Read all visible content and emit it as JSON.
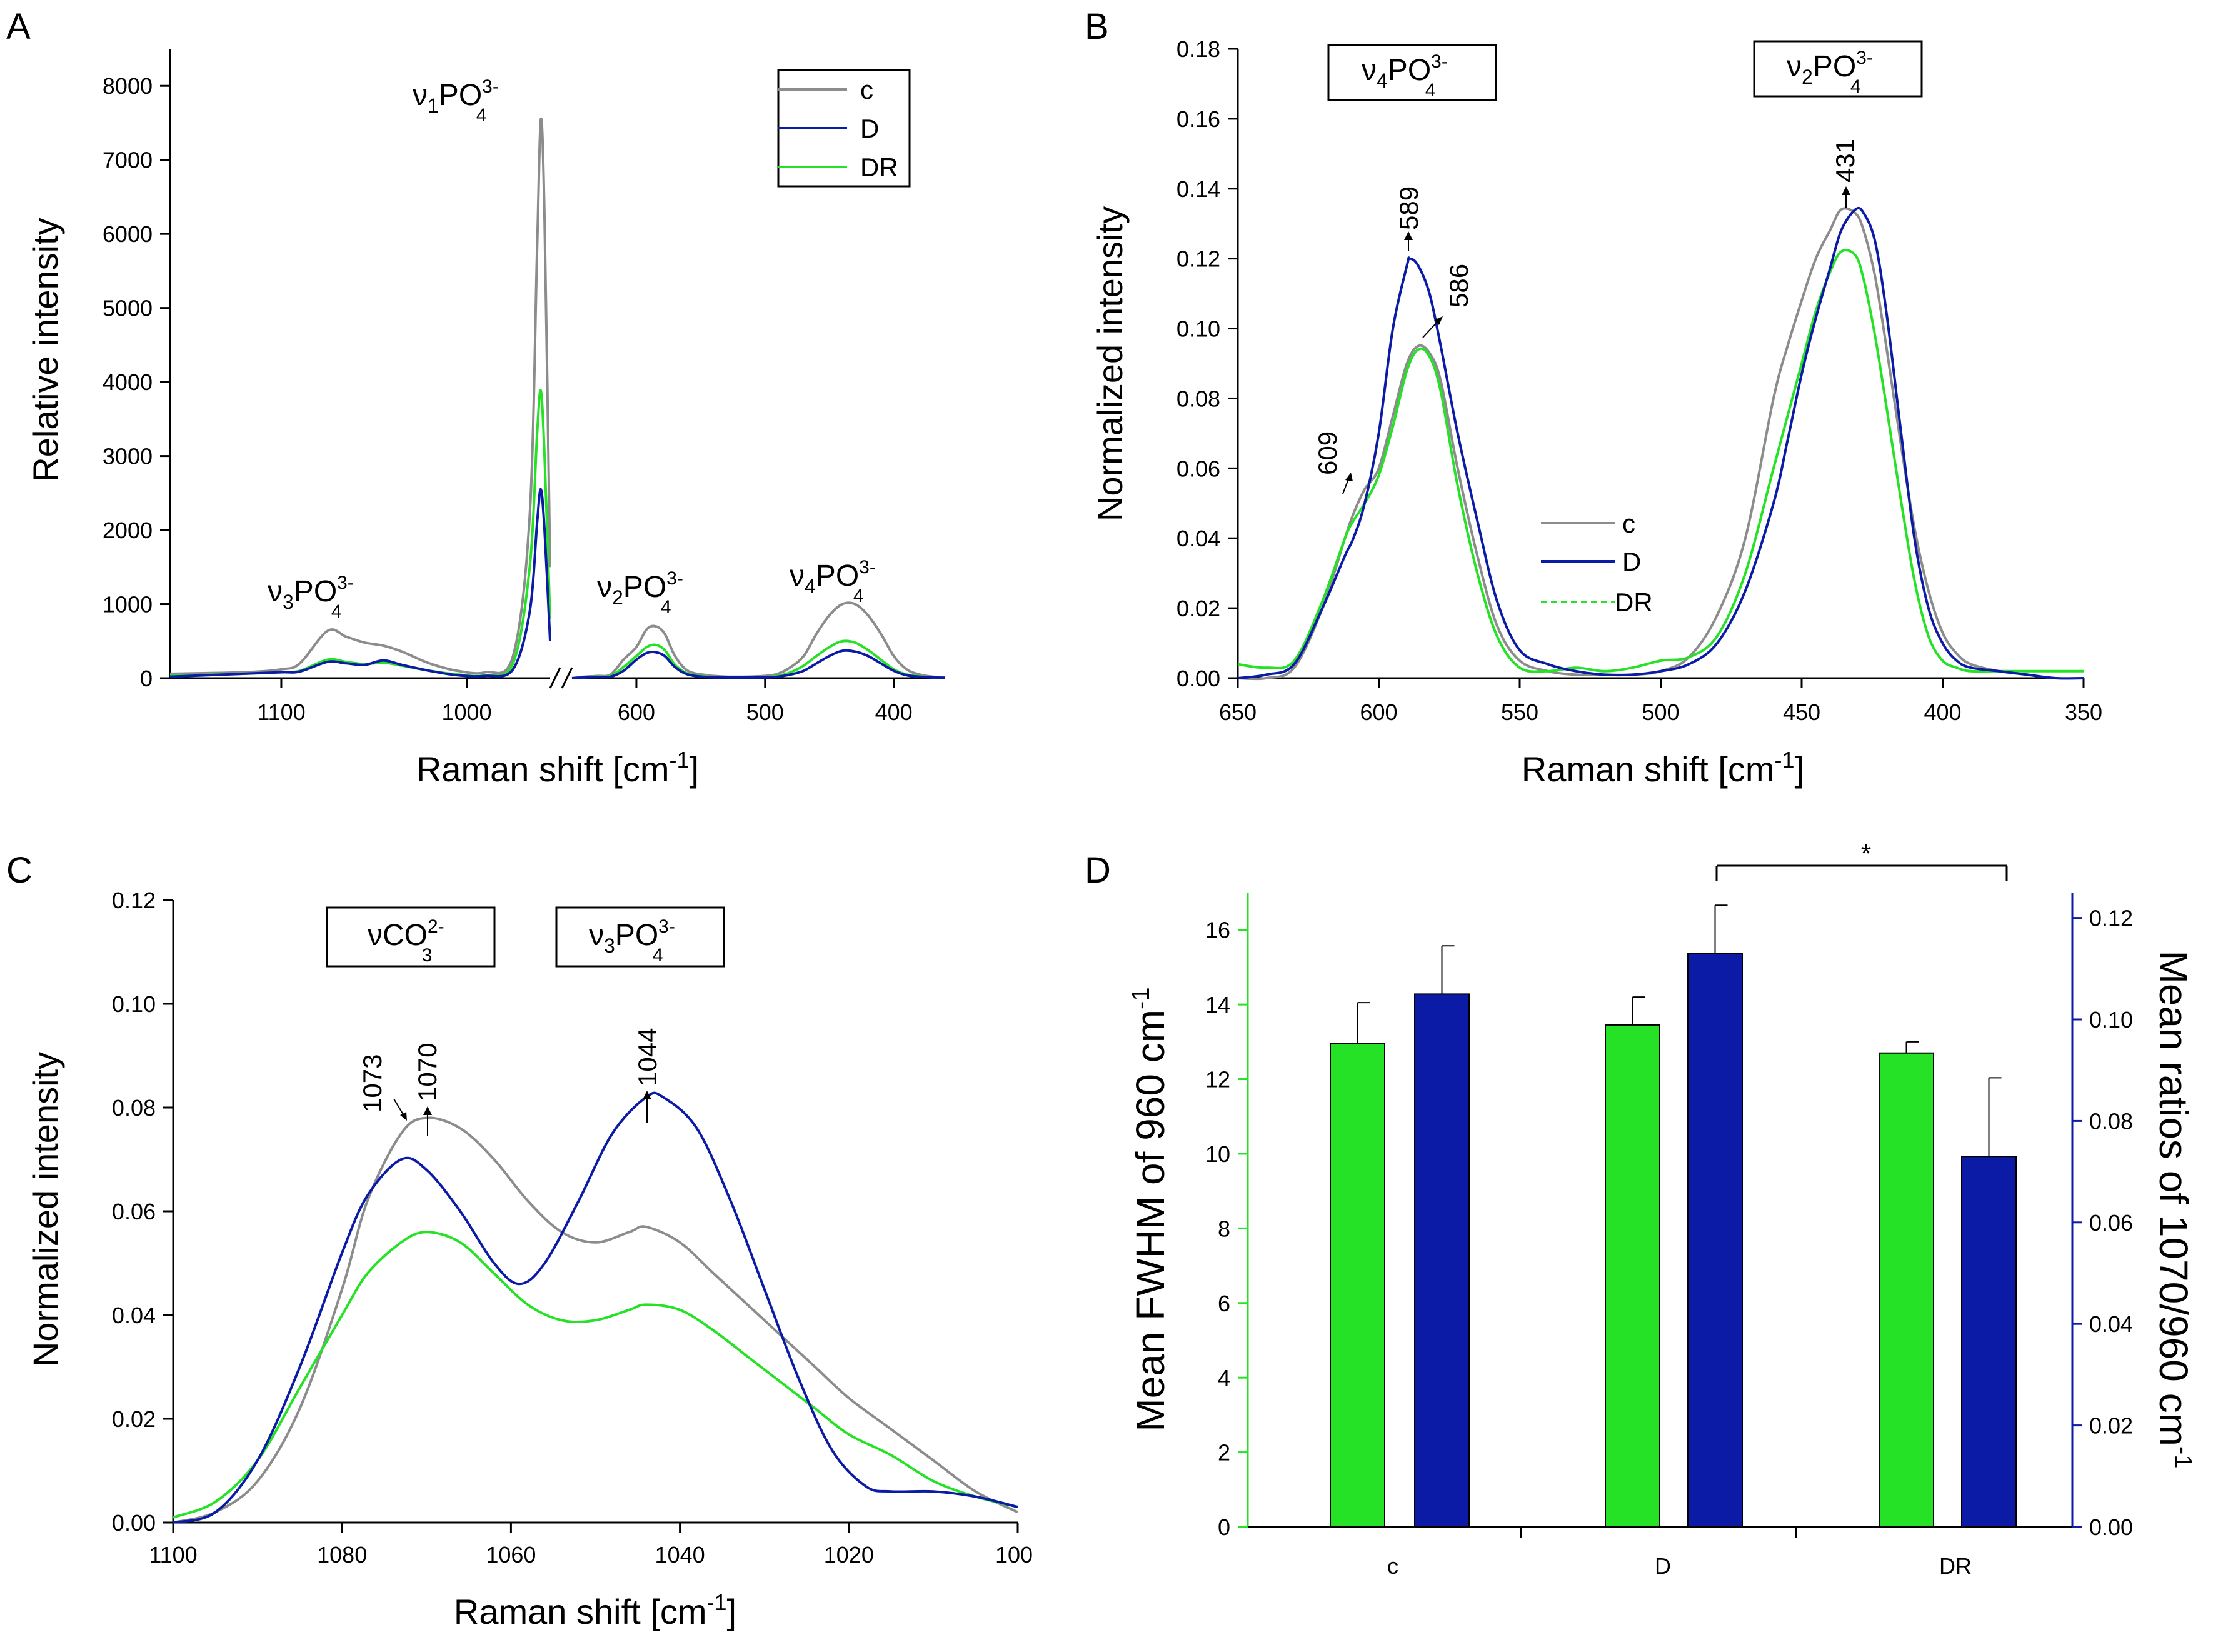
{
  "colors": {
    "c": "#8c8c8c",
    "D": "#0b1ba5",
    "DR": "#26e226",
    "left_axis_D": "#26e226",
    "right_axis_D": "#0b1ba5"
  },
  "panels": {
    "A": {
      "letter": "A",
      "ylabel": "Relative intensity",
      "xlabel_main": "Raman shift [cm",
      "xlabel_sup": "-1",
      "xlabel_end": "]",
      "yticks": [
        "0",
        "1000",
        "2000",
        "3000",
        "4000",
        "5000",
        "6000",
        "7000",
        "8000"
      ],
      "xticks": [
        "1100",
        "1000",
        "600",
        "500",
        "400"
      ],
      "legend": [
        "c",
        "D",
        "DR"
      ],
      "annotations": [
        {
          "nu": "ν",
          "sub": "3",
          "po": "PO",
          "sup": "3-",
          "sub2": "4"
        },
        {
          "nu": "ν",
          "sub": "1",
          "po": "PO",
          "sup": "3-",
          "sub2": "4"
        },
        {
          "nu": "ν",
          "sub": "2",
          "po": "PO",
          "sup": "3-",
          "sub2": "4"
        },
        {
          "nu": "ν",
          "sub": "4",
          "po": "PO",
          "sup": "3-",
          "sub2": "4"
        }
      ]
    },
    "B": {
      "letter": "B",
      "ylabel": "Normalized intensity",
      "xlabel_main": "Raman shift [cm",
      "xlabel_sup": "-1",
      "xlabel_end": "]",
      "yticks": [
        "0.00",
        "0.02",
        "0.04",
        "0.06",
        "0.08",
        "0.10",
        "0.12",
        "0.14",
        "0.16",
        "0.18"
      ],
      "xticks": [
        "650",
        "600",
        "550",
        "500",
        "450",
        "400",
        "350"
      ],
      "legend": [
        "c",
        "D",
        "DR"
      ],
      "boxes": [
        {
          "nu": "ν",
          "sub": "4",
          "po": "PO",
          "sup": "3-",
          "sub2": "4"
        },
        {
          "nu": "ν",
          "sub": "2",
          "po": "PO",
          "sup": "3-",
          "sub2": "4"
        }
      ],
      "peaks": [
        "609",
        "589",
        "586",
        "431"
      ]
    },
    "C": {
      "letter": "C",
      "ylabel": "Normalized intensity",
      "xlabel_main": "Raman shift [cm",
      "xlabel_sup": "-1",
      "xlabel_end": "]",
      "yticks": [
        "0.00",
        "0.02",
        "0.04",
        "0.06",
        "0.08",
        "0.10",
        "0.12"
      ],
      "xticks": [
        "1100",
        "1080",
        "1060",
        "1040",
        "1020",
        "100"
      ],
      "boxes": [
        {
          "nu": "νCO",
          "sub": "",
          "po": "",
          "sup": "2-",
          "sub2": "3"
        },
        {
          "nu": "ν",
          "sub": "3",
          "po": "PO",
          "sup": "3-",
          "sub2": "4"
        }
      ],
      "peaks": [
        "1073",
        "1070",
        "1044"
      ]
    },
    "D": {
      "letter": "D",
      "ylabel_left": "Mean FWHM of 960 cm",
      "ylabel_left_sup": "-1",
      "ylabel_right": "Mean ratios of 1070/960 cm",
      "ylabel_right_sup": "-1",
      "yticks_left": [
        "0",
        "2",
        "4",
        "6",
        "8",
        "10",
        "12",
        "14",
        "16"
      ],
      "yticks_right": [
        "0.00",
        "0.02",
        "0.04",
        "0.06",
        "0.08",
        "0.10",
        "0.12"
      ],
      "categories": [
        "c",
        "D",
        "DR"
      ],
      "significance": "*"
    }
  },
  "chart_data": [
    {
      "panel": "A",
      "type": "line",
      "title": "",
      "xlabel": "Raman shift [cm-1]",
      "ylabel": "Relative intensity",
      "ylim": [
        0,
        8500
      ],
      "x_reversed": true,
      "x_broken_axis": [
        [
          1160,
          955
        ],
        [
          650,
          360
        ]
      ],
      "series": [
        {
          "name": "c",
          "x": [
            1160,
            1120,
            1100,
            1090,
            1075,
            1065,
            1055,
            1045,
            1035,
            1020,
            1005,
            990,
            975,
            966,
            962,
            960,
            958,
            955,
            650,
            640,
            630,
            620,
            610,
            600,
            592,
            585,
            578,
            570,
            560,
            545,
            530,
            515,
            500,
            490,
            480,
            470,
            460,
            450,
            440,
            430,
            420,
            410,
            400,
            390,
            380,
            370,
            360
          ],
          "y": [
            60,
            80,
            120,
            200,
            640,
            560,
            480,
            440,
            360,
            200,
            100,
            80,
            300,
            2200,
            5800,
            7550,
            6200,
            1500,
            0,
            20,
            30,
            50,
            250,
            420,
            660,
            700,
            600,
            300,
            100,
            40,
            20,
            20,
            30,
            60,
            150,
            300,
            600,
            850,
            1000,
            1000,
            850,
            600,
            300,
            120,
            50,
            20,
            10
          ]
        },
        {
          "name": "D",
          "x": [
            1160,
            1120,
            1100,
            1090,
            1075,
            1065,
            1055,
            1045,
            1035,
            1020,
            1005,
            990,
            975,
            966,
            962,
            960,
            958,
            955,
            650,
            640,
            630,
            620,
            610,
            600,
            592,
            585,
            578,
            570,
            560,
            545,
            530,
            515,
            500,
            490,
            480,
            470,
            460,
            450,
            440,
            430,
            420,
            410,
            400,
            390,
            380,
            370,
            360
          ],
          "y": [
            20,
            60,
            80,
            90,
            220,
            200,
            180,
            240,
            180,
            100,
            40,
            30,
            120,
            900,
            2100,
            2550,
            2000,
            500,
            0,
            10,
            15,
            20,
            100,
            250,
            340,
            350,
            300,
            150,
            50,
            15,
            10,
            10,
            10,
            20,
            50,
            100,
            200,
            300,
            370,
            360,
            300,
            200,
            100,
            40,
            20,
            10,
            5
          ]
        },
        {
          "name": "DR",
          "x": [
            1160,
            1120,
            1100,
            1090,
            1075,
            1065,
            1055,
            1045,
            1035,
            1020,
            1005,
            990,
            975,
            966,
            962,
            960,
            958,
            955,
            650,
            640,
            630,
            620,
            610,
            600,
            592,
            585,
            578,
            570,
            560,
            545,
            530,
            515,
            500,
            490,
            480,
            470,
            460,
            450,
            440,
            430,
            420,
            410,
            400,
            390,
            380,
            370,
            360
          ],
          "y": [
            30,
            60,
            80,
            100,
            250,
            220,
            190,
            210,
            170,
            100,
            50,
            40,
            200,
            1500,
            3300,
            3880,
            3000,
            800,
            0,
            10,
            20,
            30,
            150,
            300,
            420,
            450,
            380,
            180,
            60,
            20,
            15,
            15,
            15,
            30,
            80,
            170,
            300,
            420,
            500,
            480,
            380,
            250,
            120,
            50,
            25,
            10,
            5
          ]
        }
      ],
      "annotations": [
        "ν3PO4 3-",
        "ν1PO4 3-",
        "ν2PO4 3-",
        "ν4PO4 3-"
      ]
    },
    {
      "panel": "B",
      "type": "line",
      "xlabel": "Raman shift [cm-1]",
      "ylabel": "Normalized intensity",
      "xlim": [
        650,
        350
      ],
      "ylim": [
        0,
        0.18
      ],
      "series": [
        {
          "name": "c",
          "x": [
            650,
            640,
            630,
            620,
            612,
            609,
            605,
            600,
            595,
            590,
            586,
            582,
            578,
            572,
            565,
            558,
            550,
            540,
            530,
            520,
            510,
            500,
            490,
            480,
            470,
            460,
            455,
            450,
            445,
            440,
            436,
            431,
            428,
            424,
            420,
            415,
            410,
            405,
            400,
            395,
            390,
            380,
            370,
            360,
            350
          ],
          "y": [
            0,
            0,
            0.003,
            0.02,
            0.04,
            0.047,
            0.054,
            0.06,
            0.075,
            0.09,
            0.095,
            0.093,
            0.085,
            0.06,
            0.035,
            0.015,
            0.005,
            0.002,
            0.001,
            0.001,
            0.001,
            0.002,
            0.006,
            0.018,
            0.04,
            0.08,
            0.095,
            0.108,
            0.12,
            0.128,
            0.134,
            0.133,
            0.128,
            0.115,
            0.095,
            0.068,
            0.043,
            0.025,
            0.013,
            0.007,
            0.004,
            0.002,
            0.001,
            0,
            0
          ]
        },
        {
          "name": "D",
          "x": [
            650,
            640,
            630,
            620,
            612,
            609,
            605,
            600,
            595,
            590,
            589,
            586,
            582,
            578,
            572,
            565,
            558,
            550,
            540,
            530,
            520,
            510,
            500,
            490,
            480,
            470,
            460,
            455,
            450,
            445,
            440,
            436,
            431,
            428,
            424,
            420,
            415,
            410,
            405,
            400,
            395,
            390,
            380,
            370,
            360,
            350
          ],
          "y": [
            0,
            0.001,
            0.004,
            0.02,
            0.035,
            0.04,
            0.05,
            0.07,
            0.1,
            0.118,
            0.12,
            0.118,
            0.11,
            0.095,
            0.07,
            0.045,
            0.022,
            0.008,
            0.004,
            0.002,
            0.001,
            0.001,
            0.002,
            0.004,
            0.01,
            0.025,
            0.05,
            0.068,
            0.087,
            0.103,
            0.117,
            0.128,
            0.134,
            0.133,
            0.125,
            0.105,
            0.072,
            0.04,
            0.02,
            0.01,
            0.005,
            0.003,
            0.002,
            0.001,
            0,
            0
          ]
        },
        {
          "name": "DR",
          "x": [
            650,
            640,
            630,
            620,
            612,
            609,
            605,
            600,
            595,
            590,
            586,
            582,
            578,
            572,
            565,
            558,
            550,
            540,
            530,
            520,
            510,
            500,
            490,
            480,
            470,
            460,
            455,
            450,
            445,
            440,
            436,
            431,
            428,
            424,
            420,
            415,
            410,
            405,
            400,
            395,
            390,
            380,
            370,
            360,
            350
          ],
          "y": [
            0.004,
            0.003,
            0.005,
            0.022,
            0.04,
            0.045,
            0.05,
            0.058,
            0.072,
            0.088,
            0.094,
            0.092,
            0.082,
            0.055,
            0.03,
            0.012,
            0.003,
            0.002,
            0.003,
            0.002,
            0.003,
            0.005,
            0.006,
            0.012,
            0.03,
            0.06,
            0.075,
            0.09,
            0.105,
            0.116,
            0.122,
            0.121,
            0.114,
            0.098,
            0.078,
            0.052,
            0.028,
            0.012,
            0.005,
            0.003,
            0.002,
            0.002,
            0.002,
            0.002,
            0.002
          ]
        }
      ]
    },
    {
      "panel": "C",
      "type": "line",
      "xlabel": "Raman shift [cm-1]",
      "ylabel": "Normalized intensity",
      "xlim": [
        1100,
        1000
      ],
      "ylim": [
        0,
        0.12
      ],
      "series": [
        {
          "name": "c",
          "x": [
            1100,
            1095,
            1090,
            1085,
            1080,
            1077,
            1073,
            1070,
            1066,
            1062,
            1058,
            1054,
            1050,
            1046,
            1044,
            1040,
            1036,
            1032,
            1028,
            1024,
            1020,
            1015,
            1010,
            1005,
            1000
          ],
          "y": [
            0,
            0.002,
            0.008,
            0.022,
            0.045,
            0.062,
            0.075,
            0.078,
            0.076,
            0.07,
            0.062,
            0.056,
            0.054,
            0.056,
            0.057,
            0.054,
            0.048,
            0.042,
            0.036,
            0.03,
            0.024,
            0.018,
            0.012,
            0.006,
            0.002
          ]
        },
        {
          "name": "D",
          "x": [
            1100,
            1095,
            1090,
            1085,
            1080,
            1077,
            1073,
            1070,
            1066,
            1062,
            1059,
            1056,
            1052,
            1048,
            1044,
            1042,
            1038,
            1034,
            1030,
            1026,
            1022,
            1018,
            1015,
            1010,
            1005,
            1000
          ],
          "y": [
            0,
            0.002,
            0.012,
            0.03,
            0.052,
            0.063,
            0.07,
            0.068,
            0.06,
            0.05,
            0.046,
            0.05,
            0.062,
            0.075,
            0.082,
            0.082,
            0.076,
            0.062,
            0.045,
            0.028,
            0.014,
            0.007,
            0.006,
            0.006,
            0.005,
            0.003
          ]
        },
        {
          "name": "DR",
          "x": [
            1100,
            1095,
            1090,
            1085,
            1080,
            1077,
            1073,
            1070,
            1066,
            1062,
            1058,
            1054,
            1050,
            1046,
            1044,
            1040,
            1036,
            1032,
            1028,
            1024,
            1020,
            1015,
            1010,
            1005,
            1000
          ],
          "y": [
            0.001,
            0.004,
            0.012,
            0.026,
            0.04,
            0.048,
            0.054,
            0.056,
            0.054,
            0.048,
            0.042,
            0.039,
            0.039,
            0.041,
            0.042,
            0.041,
            0.037,
            0.032,
            0.027,
            0.022,
            0.017,
            0.013,
            0.008,
            0.005,
            0.003
          ]
        }
      ]
    },
    {
      "panel": "D",
      "type": "bar",
      "categories": [
        "c",
        "D",
        "DR"
      ],
      "series": [
        {
          "name": "Mean FWHM of 960 cm-1",
          "axis": "left",
          "values": [
            12.95,
            13.45,
            12.7
          ],
          "errors": [
            1.1,
            0.75,
            0.3
          ]
        },
        {
          "name": "Mean ratios of 1070/960 cm-1",
          "axis": "right",
          "values": [
            0.105,
            0.113,
            0.073
          ],
          "errors": [
            0.0095,
            0.0095,
            0.0155
          ]
        }
      ],
      "ylim_left": [
        0,
        17
      ],
      "ylim_right": [
        0,
        0.125
      ],
      "significance": {
        "between": [
          "D",
          "DR"
        ],
        "label": "*"
      }
    }
  ]
}
